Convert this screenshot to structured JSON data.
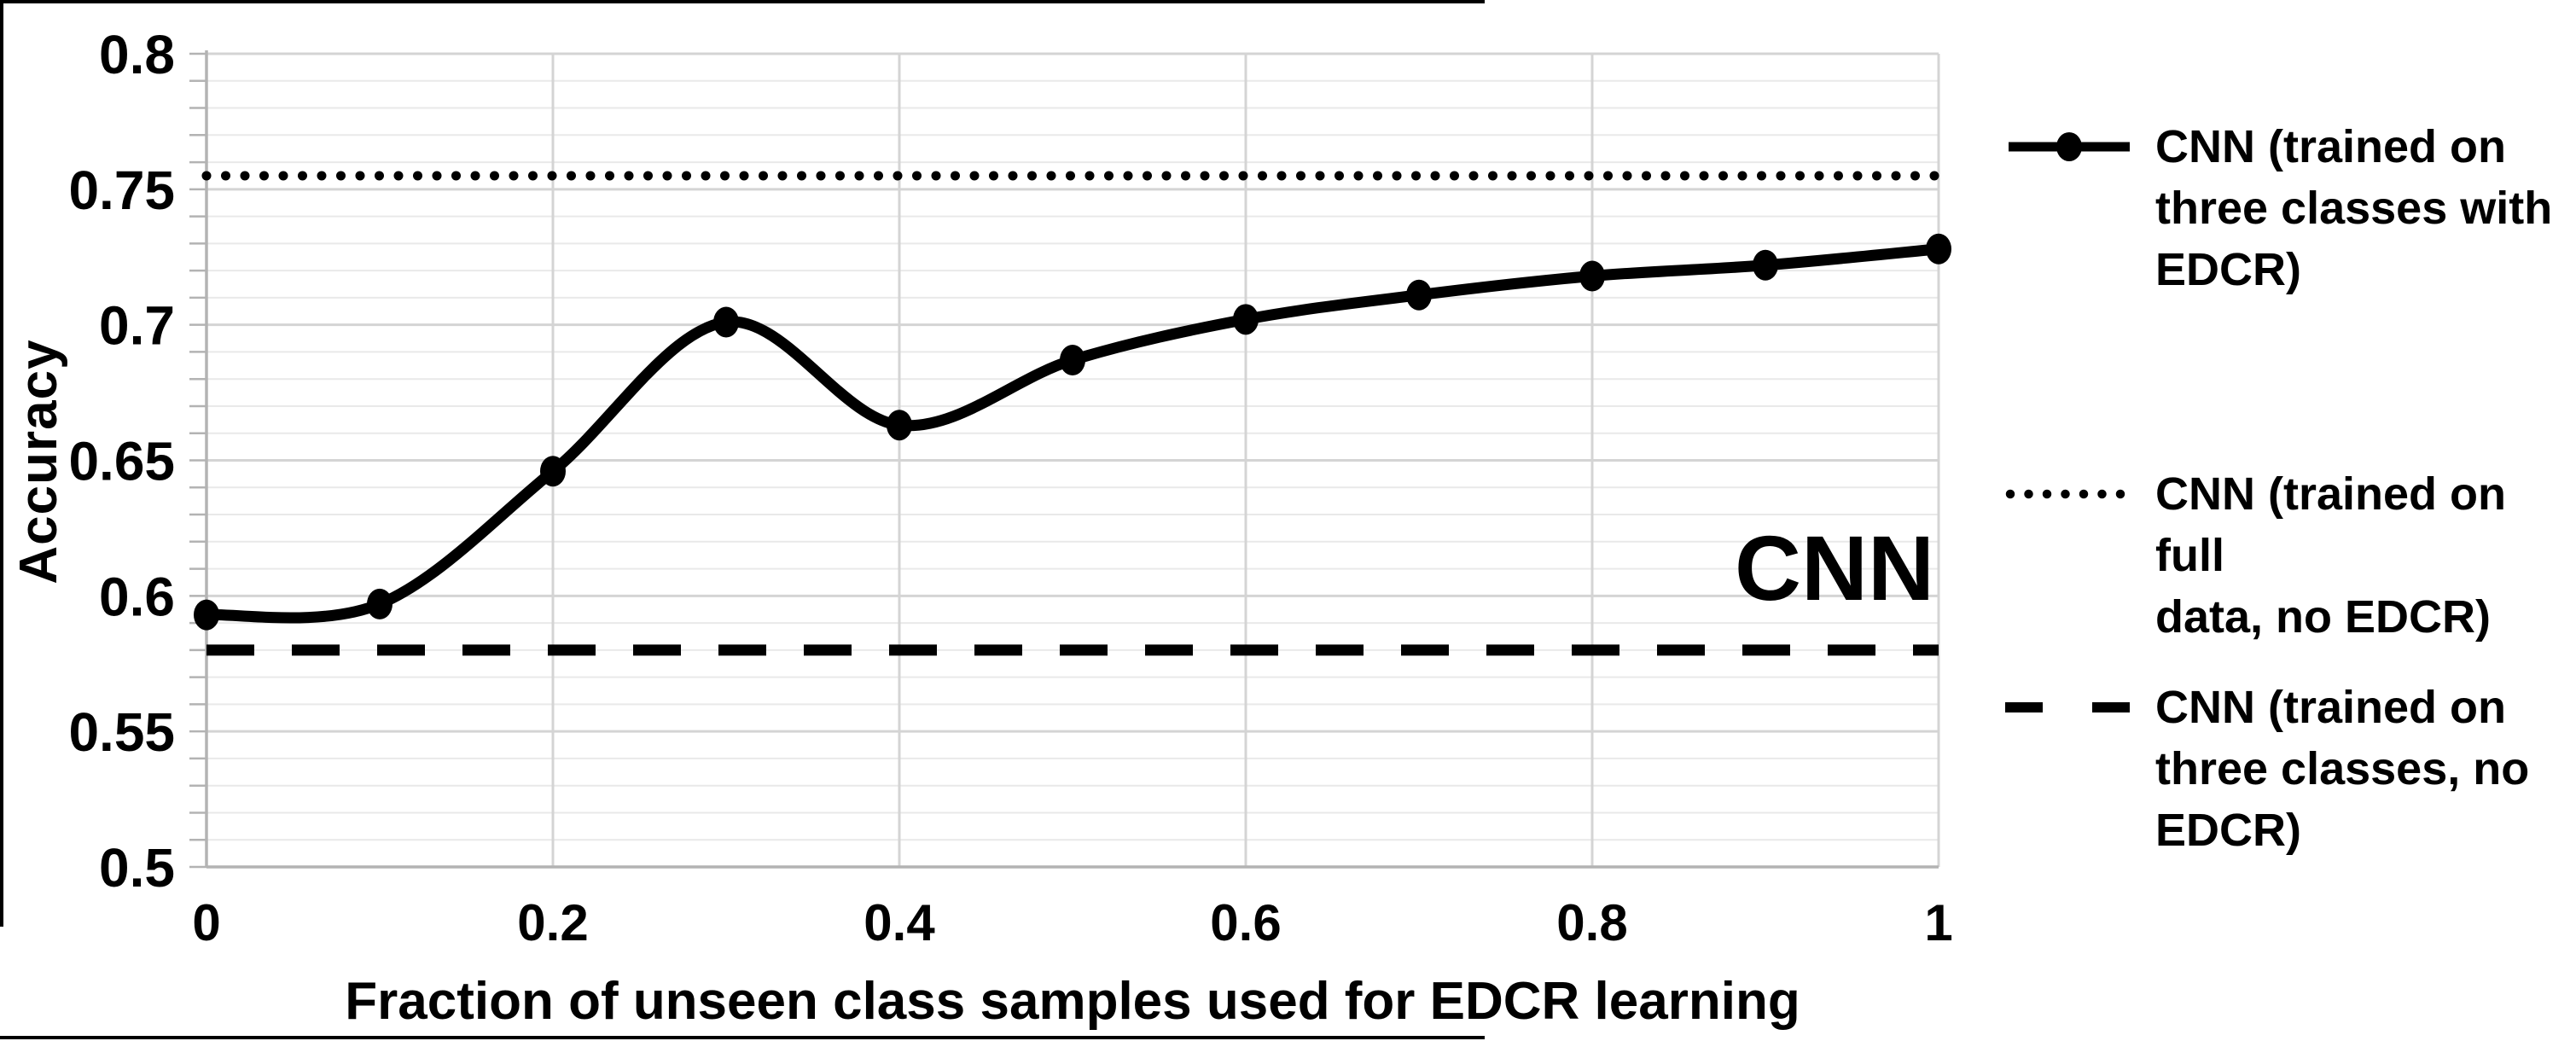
{
  "figure": {
    "annotation": "CNN",
    "x_axis": {
      "title": "Fraction of unseen class samples used for EDCR learning",
      "tick_values": [
        0,
        0.2,
        0.4,
        0.6,
        0.8,
        1
      ],
      "tick_labels": [
        "0",
        "0.2",
        "0.4",
        "0.6",
        "0.8",
        "1"
      ]
    },
    "y_axis": {
      "title": "Accuracy",
      "tick_values": [
        0.5,
        0.55,
        0.6,
        0.65,
        0.7,
        0.75,
        0.8
      ],
      "tick_labels": [
        "0.5",
        "0.55",
        "0.6",
        "0.65",
        "0.7",
        "0.75",
        "0.8"
      ]
    }
  },
  "chart_data": {
    "type": "line",
    "title": "",
    "xlabel": "Fraction of unseen class samples used for EDCR learning",
    "ylabel": "Accuracy",
    "xlim": [
      0,
      1
    ],
    "ylim": [
      0.5,
      0.8
    ],
    "grid": {
      "y_minor_step": 0.01,
      "y_major_step": 0.05,
      "x_gridline_step": 0.2
    },
    "legend_position": "right",
    "annotation": "CNN",
    "x": [
      0,
      0.1,
      0.2,
      0.3,
      0.4,
      0.5,
      0.6,
      0.7,
      0.8,
      0.9,
      1
    ],
    "series": [
      {
        "name": "CNN  (trained on three classes with EDCR)",
        "style": "solid-marker",
        "values": [
          0.593,
          0.597,
          0.646,
          0.701,
          0.663,
          0.687,
          0.702,
          0.711,
          0.718,
          0.722,
          0.728
        ]
      },
      {
        "name": "CNN (trained on full data, no EDCR)",
        "style": "dotted",
        "value": 0.755
      },
      {
        "name": "CNN (trained on three classes, no EDCR)",
        "style": "dashed",
        "value": 0.58
      }
    ],
    "colors": {
      "series": "#000000",
      "minor_grid": "#e9e9e9",
      "major_grid": "#d4d4d4",
      "axis": "#b3b3b3"
    }
  },
  "legend": {
    "entries": [
      {
        "style": "solid-marker",
        "text": "CNN  (trained on\nthree classes with\nEDCR)"
      },
      {
        "style": "dotted",
        "text": "CNN (trained on full\ndata, no EDCR)"
      },
      {
        "style": "dashed",
        "text": "CNN (trained on\nthree classes, no\nEDCR)"
      }
    ]
  }
}
